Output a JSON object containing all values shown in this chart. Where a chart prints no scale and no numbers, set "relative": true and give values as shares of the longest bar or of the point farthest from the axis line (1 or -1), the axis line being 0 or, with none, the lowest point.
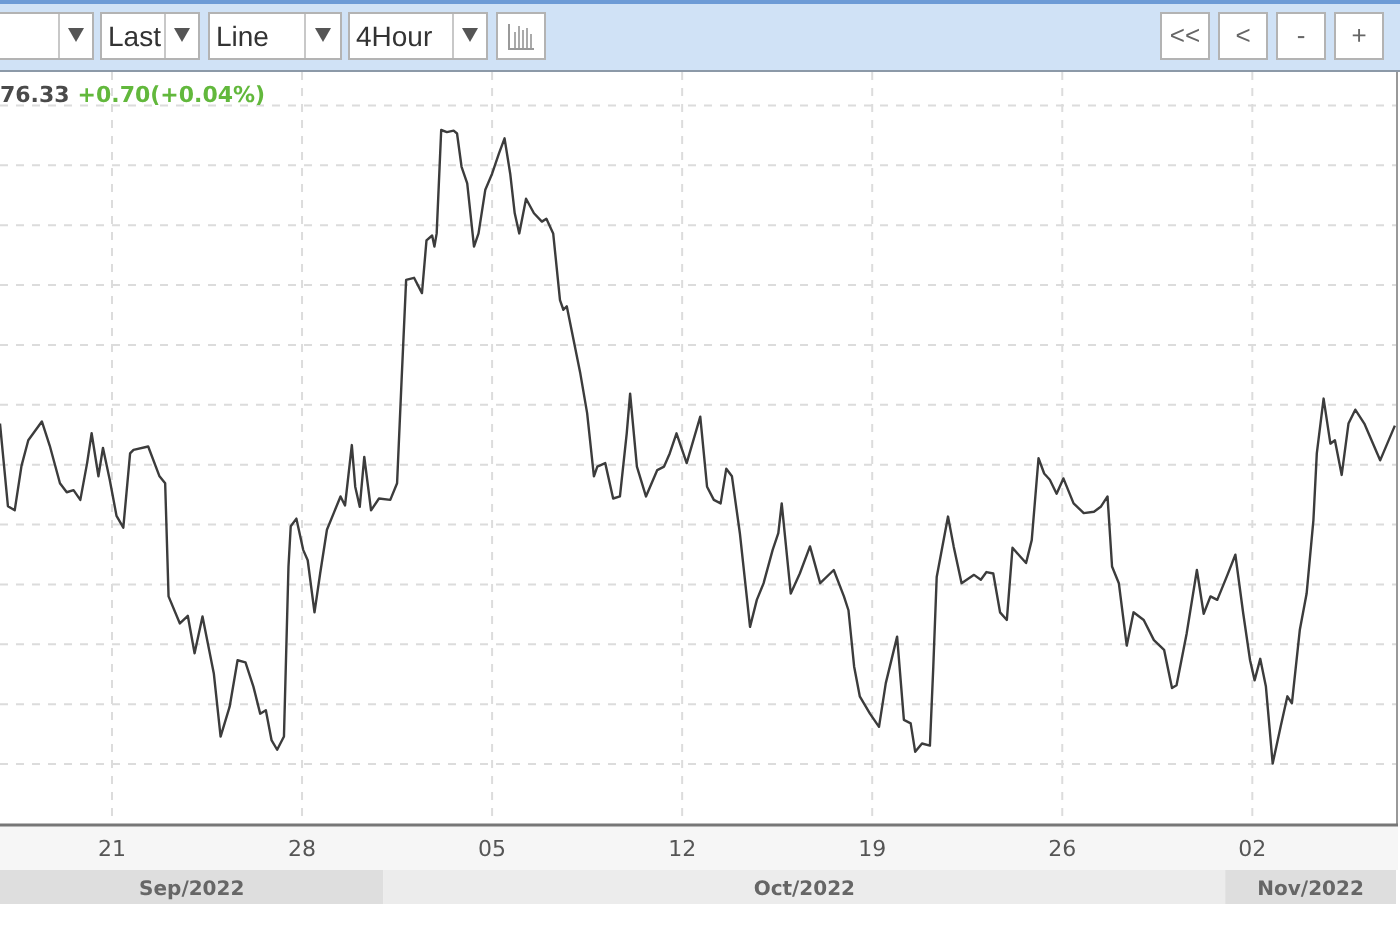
{
  "chart_data": {
    "type": "line",
    "relative": true,
    "x": [
      "2022-09-16T21:00",
      "2022-09-17T04:00",
      "2022-09-17T10:00",
      "2022-09-17T16:00",
      "2022-09-17T22:00",
      "2022-09-18T10:00",
      "2022-09-18T17:00",
      "2022-09-19T02:00",
      "2022-09-19T08:00",
      "2022-09-19T14:00",
      "2022-09-19T20:00",
      "2022-09-20T02:00",
      "2022-09-20T06:00",
      "2022-09-20T12:00",
      "2022-09-20T16:00",
      "2022-09-20T22:00",
      "2022-09-21T04:00",
      "2022-09-21T10:00",
      "2022-09-21T16:00",
      "2022-09-21T19:00",
      "2022-09-22T08:00",
      "2022-09-22T18:00",
      "2022-09-22T23:00",
      "2022-09-23T02:00",
      "2022-09-23T12:00",
      "2022-09-23T19:00",
      "2022-09-24T01:00",
      "2022-09-24T08:00",
      "2022-09-24T18:00",
      "2022-09-25T00:00",
      "2022-09-25T08:00",
      "2022-09-25T15:00",
      "2022-09-25T22:00",
      "2022-09-26T05:00",
      "2022-09-26T11:00",
      "2022-09-26T16:00",
      "2022-09-26T21:00",
      "2022-09-27T02:00",
      "2022-09-27T08:00",
      "2022-09-27T12:00",
      "2022-09-27T14:00",
      "2022-09-27T19:00",
      "2022-09-28T01:00",
      "2022-09-28T05:00",
      "2022-09-28T11:00",
      "2022-09-28T16:00",
      "2022-09-28T22:00",
      "2022-09-29T04:00",
      "2022-09-29T10:00",
      "2022-09-29T14:00",
      "2022-09-29T20:00",
      "2022-09-29T23:00",
      "2022-09-30T03:00",
      "2022-09-30T07:00",
      "2022-09-30T13:00",
      "2022-09-30T20:00",
      "2022-10-01T06:00",
      "2022-10-01T12:00",
      "2022-10-01T16:00",
      "2022-10-01T20:00",
      "2022-10-02T03:00",
      "2022-10-02T10:00",
      "2022-10-02T14:00",
      "2022-10-02T19:00",
      "2022-10-02T21:00",
      "2022-10-02T23:00",
      "2022-10-03T03:00",
      "2022-10-03T08:00",
      "2022-10-03T14:00",
      "2022-10-03T17:00",
      "2022-10-03T21:00",
      "2022-10-04T02:00",
      "2022-10-04T08:00",
      "2022-10-04T12:00",
      "2022-10-04T18:00",
      "2022-10-05T00:00",
      "2022-10-05T06:00",
      "2022-10-05T11:00",
      "2022-10-05T16:00",
      "2022-10-05T20:00",
      "2022-10-06T00:00",
      "2022-10-06T06:00",
      "2022-10-06T13:00",
      "2022-10-06T20:00",
      "2022-10-07T00:00",
      "2022-10-07T06:00",
      "2022-10-07T12:00",
      "2022-10-07T15:00",
      "2022-10-07T18:00",
      "2022-10-08T06:00",
      "2022-10-08T12:00",
      "2022-10-08T18:00",
      "2022-10-08T21:00",
      "2022-10-09T04:00",
      "2022-10-09T11:00",
      "2022-10-09T17:00",
      "2022-10-09T23:00",
      "2022-10-10T02:00",
      "2022-10-10T08:00",
      "2022-10-10T16:00",
      "2022-10-11T02:00",
      "2022-10-11T08:00",
      "2022-10-11T13:00",
      "2022-10-11T19:00",
      "2022-10-12T04:00",
      "2022-10-12T16:00",
      "2022-10-12T22:00",
      "2022-10-13T04:00",
      "2022-10-13T10:00",
      "2022-10-13T15:00",
      "2022-10-13T20:00",
      "2022-10-14T03:00",
      "2022-10-14T12:00",
      "2022-10-14T18:00",
      "2022-10-15T00:00",
      "2022-10-15T08:00",
      "2022-10-15T13:00",
      "2022-10-15T16:00",
      "2022-10-16T00:00",
      "2022-10-16T08:00",
      "2022-10-16T17:00",
      "2022-10-17T02:00",
      "2022-10-17T14:00",
      "2022-10-17T23:00",
      "2022-10-18T03:00",
      "2022-10-18T08:00",
      "2022-10-18T13:00",
      "2022-10-18T22:00",
      "2022-10-19T06:00",
      "2022-10-19T12:00",
      "2022-10-19T22:00",
      "2022-10-20T04:00",
      "2022-10-20T10:00",
      "2022-10-20T14:00",
      "2022-10-20T20:00",
      "2022-10-21T03:00",
      "2022-10-21T06:00",
      "2022-10-21T09:00",
      "2022-10-21T19:00",
      "2022-10-22T00:00",
      "2022-10-22T07:00",
      "2022-10-22T18:00",
      "2022-10-23T00:00",
      "2022-10-23T05:00",
      "2022-10-23T11:00",
      "2022-10-23T17:00",
      "2022-10-23T23:00",
      "2022-10-24T04:00",
      "2022-10-24T11:00",
      "2022-10-24T16:00",
      "2022-10-24T21:00",
      "2022-10-25T03:00",
      "2022-10-25T08:00",
      "2022-10-25T13:00",
      "2022-10-25T19:00",
      "2022-10-26T01:00",
      "2022-10-26T10:00",
      "2022-10-26T19:00",
      "2022-10-27T04:00",
      "2022-10-27T10:00",
      "2022-10-27T16:00",
      "2022-10-27T20:00",
      "2022-10-28T02:00",
      "2022-10-28T09:00",
      "2022-10-28T15:00",
      "2022-10-29T00:00",
      "2022-10-29T09:00",
      "2022-10-29T18:00",
      "2022-10-30T01:00",
      "2022-10-30T05:00",
      "2022-10-30T14:00",
      "2022-10-30T23:00",
      "2022-10-31T05:00",
      "2022-10-31T11:00",
      "2022-10-31T17:00",
      "2022-11-01T02:00",
      "2022-11-01T09:00",
      "2022-11-01T16:00",
      "2022-11-01T22:00",
      "2022-11-02T02:00",
      "2022-11-02T07:00",
      "2022-11-02T12:00",
      "2022-11-02T18:00",
      "2022-11-03T01:00",
      "2022-11-03T07:00",
      "2022-11-03T11:00",
      "2022-11-03T18:00",
      "2022-11-04T00:00",
      "2022-11-04T06:00",
      "2022-11-04T09:00",
      "2022-11-04T15:00",
      "2022-11-04T21:00",
      "2022-11-05T01:00",
      "2022-11-05T07:00",
      "2022-11-05T13:00",
      "2022-11-05T19:00",
      "2022-11-06T03:00",
      "2022-11-06T17:00",
      "2022-11-07T06:00"
    ],
    "series": [
      {
        "color": "#3c3c3c",
        "values": [
          0.577,
          0.458,
          0.452,
          0.516,
          0.553,
          0.58,
          0.545,
          0.491,
          0.478,
          0.481,
          0.467,
          0.52,
          0.563,
          0.501,
          0.542,
          0.496,
          0.444,
          0.427,
          0.534,
          0.539,
          0.544,
          0.501,
          0.491,
          0.328,
          0.289,
          0.3,
          0.246,
          0.299,
          0.217,
          0.126,
          0.169,
          0.236,
          0.233,
          0.198,
          0.159,
          0.164,
          0.121,
          0.107,
          0.126,
          0.371,
          0.429,
          0.44,
          0.395,
          0.38,
          0.305,
          0.361,
          0.424,
          0.448,
          0.472,
          0.459,
          0.546,
          0.486,
          0.457,
          0.529,
          0.452,
          0.469,
          0.467,
          0.491,
          0.64,
          0.784,
          0.787,
          0.765,
          0.841,
          0.848,
          0.832,
          0.851,
          1,
          0.997,
          0.999,
          0.995,
          0.947,
          0.923,
          0.832,
          0.851,
          0.914,
          0.937,
          0.966,
          0.988,
          0.937,
          0.88,
          0.851,
          0.901,
          0.88,
          0.868,
          0.872,
          0.851,
          0.755,
          0.741,
          0.746,
          0.649,
          0.592,
          0.501,
          0.515,
          0.52,
          0.469,
          0.472,
          0.563,
          0.62,
          0.515,
          0.472,
          0.51,
          0.515,
          0.534,
          0.563,
          0.52,
          0.587,
          0.486,
          0.467,
          0.462,
          0.512,
          0.501,
          0.419,
          0.284,
          0.323,
          0.347,
          0.395,
          0.419,
          0.462,
          0.332,
          0.361,
          0.4,
          0.347,
          0.366,
          0.328,
          0.308,
          0.227,
          0.184,
          0.159,
          0.14,
          0.203,
          0.27,
          0.15,
          0.145,
          0.104,
          0.116,
          0.113,
          0.227,
          0.356,
          0.443,
          0.4,
          0.347,
          0.359,
          0.352,
          0.363,
          0.361,
          0.305,
          0.294,
          0.398,
          0.385,
          0.376,
          0.409,
          0.527,
          0.505,
          0.496,
          0.476,
          0.498,
          0.462,
          0.448,
          0.45,
          0.457,
          0.472,
          0.371,
          0.347,
          0.257,
          0.305,
          0.294,
          0.265,
          0.251,
          0.196,
          0.2,
          0.275,
          0.366,
          0.303,
          0.328,
          0.323,
          0.359,
          0.388,
          0.303,
          0.236,
          0.207,
          0.238,
          0.198,
          0.087,
          0.14,
          0.184,
          0.174,
          0.28,
          0.332,
          0.438,
          0.534,
          0.613,
          0.548,
          0.553,
          0.503,
          0.577,
          0.597,
          0.577,
          0.524,
          0.574
        ]
      }
    ],
    "xlim": [
      "2022-09-16T21:00",
      "2022-11-07T07:00"
    ],
    "xticks": [
      {
        "value": "2022-09-21",
        "label": "21"
      },
      {
        "value": "2022-09-28",
        "label": "28"
      },
      {
        "value": "2022-10-05",
        "label": "05"
      },
      {
        "value": "2022-10-12",
        "label": "12"
      },
      {
        "value": "2022-10-19",
        "label": "19"
      },
      {
        "value": "2022-10-26",
        "label": "26"
      },
      {
        "value": "2022-11-02",
        "label": "02"
      }
    ],
    "grid": true,
    "annotations": [
      "76.33",
      "+0.70(+0.04%)",
      "Last",
      "Line",
      "4Hour",
      "<<",
      "<",
      "-",
      "+",
      "Sep/2022",
      "Oct/2022",
      "Nov/2022"
    ]
  }
}
